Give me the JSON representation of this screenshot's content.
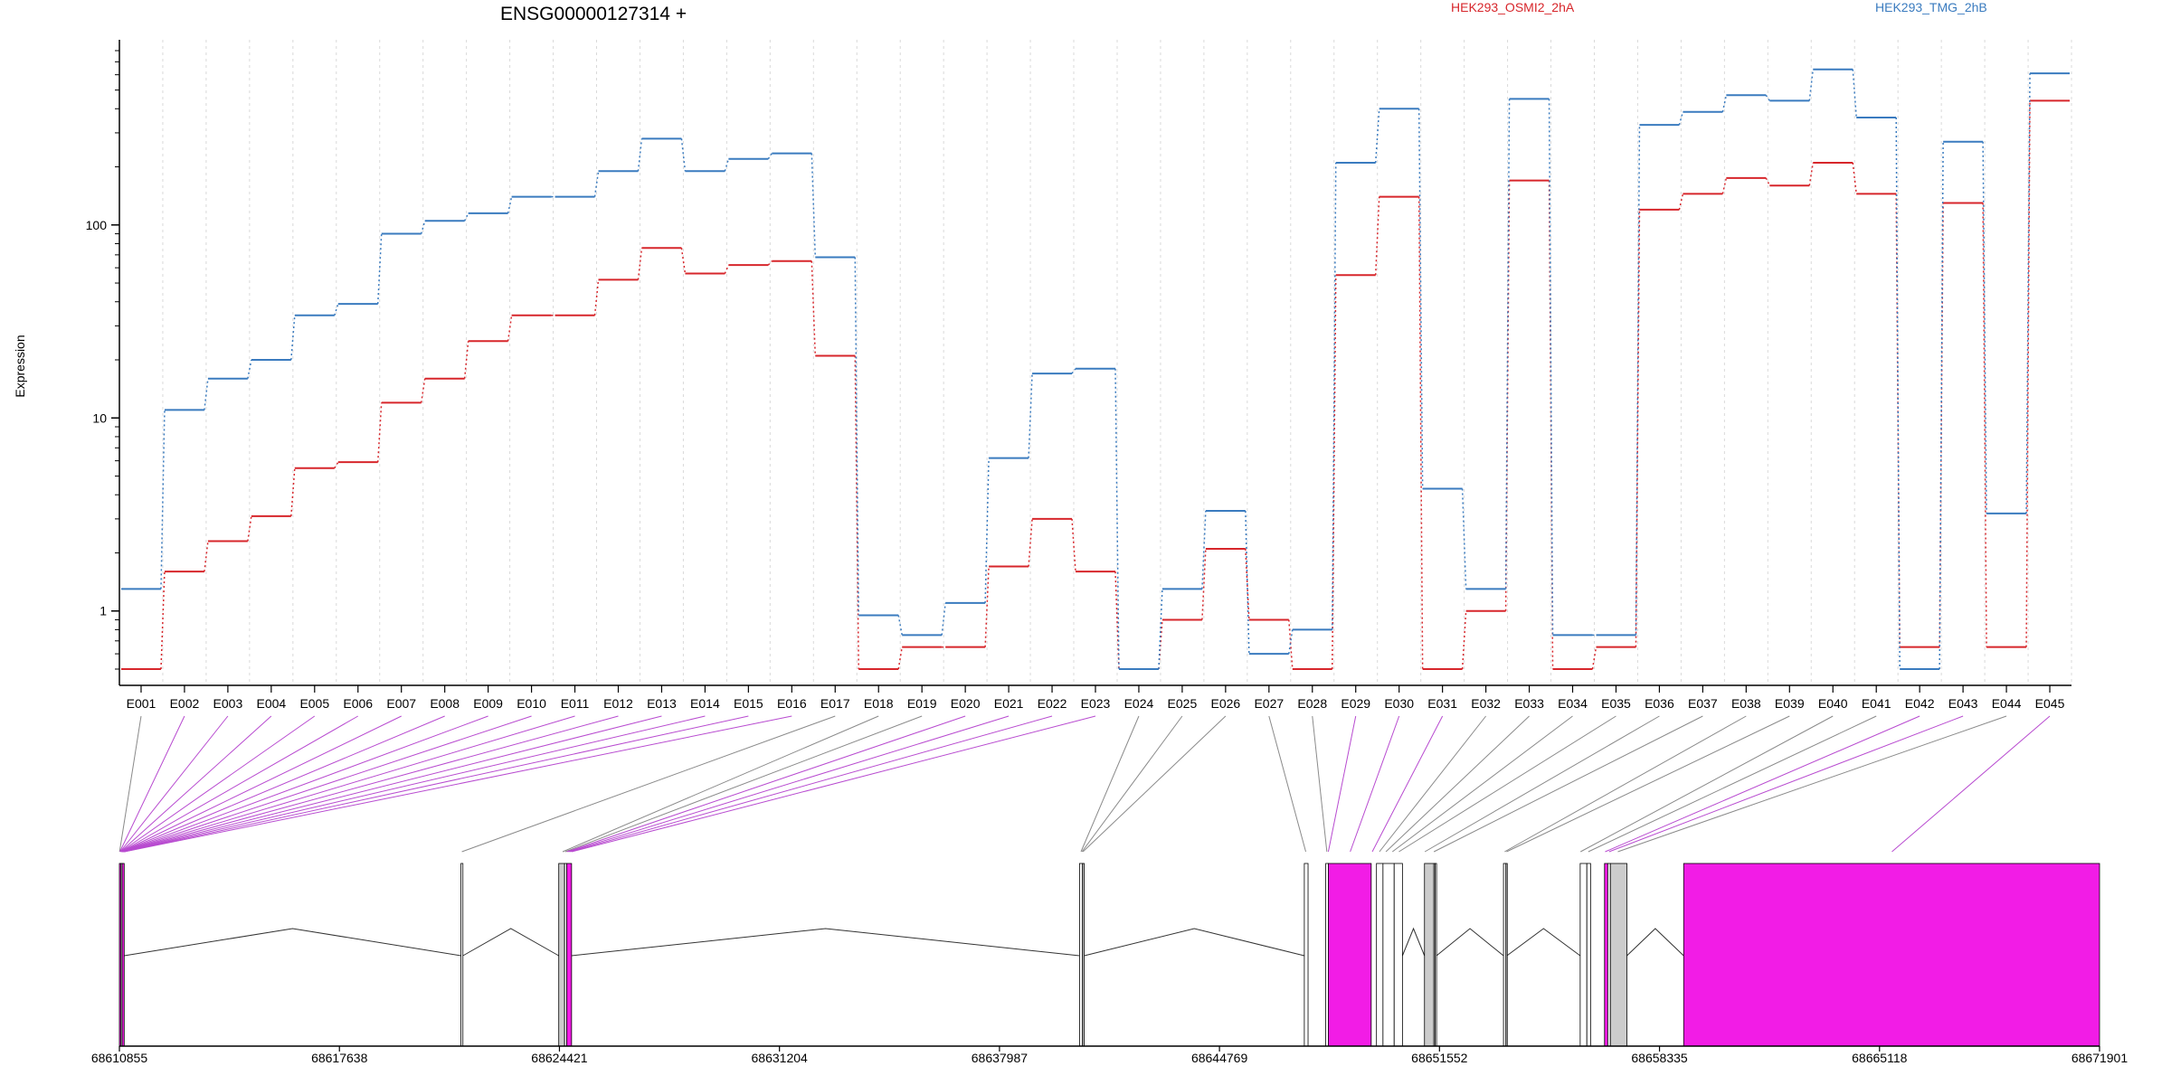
{
  "chart_data": {
    "type": "line",
    "title": "ENSG00000127314 +",
    "ylabel": "Expression",
    "xlabel": "",
    "yscale": "log",
    "ylim": [
      0.5,
      800
    ],
    "y_ticks": [
      "1",
      "10",
      "100"
    ],
    "y_tick_values": [
      1,
      10,
      100
    ],
    "categories": [
      "E001",
      "E002",
      "E003",
      "E004",
      "E005",
      "E006",
      "E007",
      "E008",
      "E009",
      "E010",
      "E011",
      "E012",
      "E013",
      "E014",
      "E015",
      "E016",
      "E017",
      "E018",
      "E019",
      "E020",
      "E021",
      "E022",
      "E023",
      "E024",
      "E025",
      "E026",
      "E027",
      "E028",
      "E029",
      "E030",
      "E031",
      "E032",
      "E033",
      "E034",
      "E035",
      "E036",
      "E037",
      "E038",
      "E039",
      "E040",
      "E041",
      "E042",
      "E043",
      "E044",
      "E045"
    ],
    "legend_position": "top-right",
    "series": [
      {
        "name": "HEK293_OSMI2_2hA",
        "color": "#d7262b",
        "values": [
          0.5,
          1.6,
          2.3,
          3.1,
          5.5,
          5.9,
          12,
          16,
          25,
          34,
          34,
          52,
          76,
          56,
          62,
          65,
          21,
          0.5,
          0.65,
          0.65,
          1.7,
          3,
          1.6,
          0.5,
          0.9,
          2.1,
          0.9,
          0.5,
          55,
          140,
          0.5,
          1,
          170,
          0.5,
          0.65,
          120,
          145,
          175,
          160,
          210,
          145,
          0.65,
          130,
          0.65,
          440
        ]
      },
      {
        "name": "HEK293_TMG_2hB",
        "color": "#3a7bbf",
        "values": [
          1.3,
          11,
          16,
          20,
          34,
          39,
          90,
          105,
          115,
          140,
          140,
          190,
          280,
          190,
          220,
          235,
          68,
          0.95,
          0.75,
          1.1,
          6.2,
          17,
          18,
          0.5,
          1.3,
          3.3,
          0.6,
          0.8,
          210,
          400,
          4.3,
          1.3,
          450,
          0.75,
          0.75,
          330,
          385,
          470,
          440,
          640,
          360,
          0.5,
          270,
          3.2,
          610
        ]
      }
    ],
    "gene_model": {
      "genomic_ticks": [
        "68610855",
        "68617638",
        "68624421",
        "68631204",
        "68637987",
        "68644769",
        "68651552",
        "68658335",
        "68665118",
        "68671901"
      ],
      "genomic_tick_values": [
        68610855,
        68617638,
        68624421,
        68631204,
        68637987,
        68644769,
        68651552,
        68658335,
        68665118,
        68671901
      ],
      "exon_fill_colors": {
        "significant": "#f21ce6",
        "other": "#ffffff",
        "shaded": "#cccccc"
      },
      "exons": [
        {
          "start": 68610855,
          "end": 68610903,
          "fill": "significant"
        },
        {
          "start": 68610903,
          "end": 68610940,
          "fill": "other"
        },
        {
          "start": 68610940,
          "end": 68611003,
          "fill": "significant"
        },
        {
          "start": 68621385,
          "end": 68621445,
          "fill": "other"
        },
        {
          "start": 68624400,
          "end": 68624580,
          "fill": "shaded"
        },
        {
          "start": 68624580,
          "end": 68624645,
          "fill": "other"
        },
        {
          "start": 68624645,
          "end": 68624795,
          "fill": "significant"
        },
        {
          "start": 68640455,
          "end": 68640545,
          "fill": "other"
        },
        {
          "start": 68640545,
          "end": 68640600,
          "fill": "shaded"
        },
        {
          "start": 68647385,
          "end": 68647500,
          "fill": "other"
        },
        {
          "start": 68648046,
          "end": 68648125,
          "fill": "other"
        },
        {
          "start": 68648125,
          "end": 68649447,
          "fill": "significant"
        },
        {
          "start": 68649610,
          "end": 68649810,
          "fill": "other"
        },
        {
          "start": 68649810,
          "end": 68650155,
          "fill": "other"
        },
        {
          "start": 68650155,
          "end": 68650410,
          "fill": "other"
        },
        {
          "start": 68651090,
          "end": 68651380,
          "fill": "shaded"
        },
        {
          "start": 68651380,
          "end": 68651420,
          "fill": "other"
        },
        {
          "start": 68651420,
          "end": 68651460,
          "fill": "other"
        },
        {
          "start": 68653525,
          "end": 68653600,
          "fill": "other"
        },
        {
          "start": 68653600,
          "end": 68653630,
          "fill": "shaded"
        },
        {
          "start": 68655890,
          "end": 68656095,
          "fill": "other"
        },
        {
          "start": 68656095,
          "end": 68656210,
          "fill": "other"
        },
        {
          "start": 68656640,
          "end": 68656740,
          "fill": "significant"
        },
        {
          "start": 68656740,
          "end": 68656820,
          "fill": "other"
        },
        {
          "start": 68656820,
          "end": 68657330,
          "fill": "shaded"
        },
        {
          "start": 68659080,
          "end": 68671901,
          "fill": "significant"
        }
      ],
      "exon_positions": [
        68610860,
        68610870,
        68610880,
        68610890,
        68610900,
        68610910,
        68610920,
        68610930,
        68610940,
        68610950,
        68610960,
        68610970,
        68610980,
        68610990,
        68611000,
        68611010,
        68621413,
        68624520,
        68624600,
        68624650,
        68624700,
        68624750,
        68624800,
        68640500,
        68640530,
        68640560,
        68647430,
        68648080,
        68648125,
        68648800,
        68649480,
        68649700,
        68649900,
        68650100,
        68650300,
        68651100,
        68651380,
        68653560,
        68653620,
        68655900,
        68656140,
        68656660,
        68656780,
        68657050,
        68665500
      ],
      "significant_exons": [
        "E002",
        "E003",
        "E004",
        "E005",
        "E006",
        "E007",
        "E008",
        "E009",
        "E010",
        "E011",
        "E012",
        "E013",
        "E014",
        "E015",
        "E016",
        "E020",
        "E021",
        "E022",
        "E023",
        "E029",
        "E030",
        "E031",
        "E042",
        "E043",
        "E045"
      ]
    }
  }
}
